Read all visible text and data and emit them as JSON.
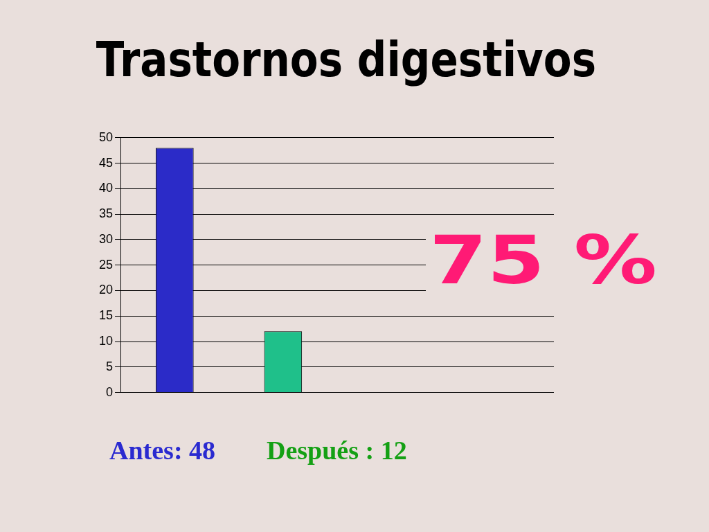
{
  "chart_data": {
    "type": "bar",
    "title": "Trastornos digestivos",
    "categories": [
      null,
      null,
      null,
      null
    ],
    "values": [
      48,
      12,
      null,
      null
    ],
    "colors": [
      "#2b2bc8",
      "#1fc08a",
      "#2b2bc8",
      "#1fc08a"
    ],
    "ylim": [
      0,
      50
    ],
    "yticks": [
      0,
      5,
      10,
      15,
      20,
      25,
      30,
      35,
      40,
      45,
      50
    ],
    "grid": "y",
    "legend": false,
    "annotations": [
      "75 %",
      "Antes: 48",
      "Después : 12"
    ]
  }
}
